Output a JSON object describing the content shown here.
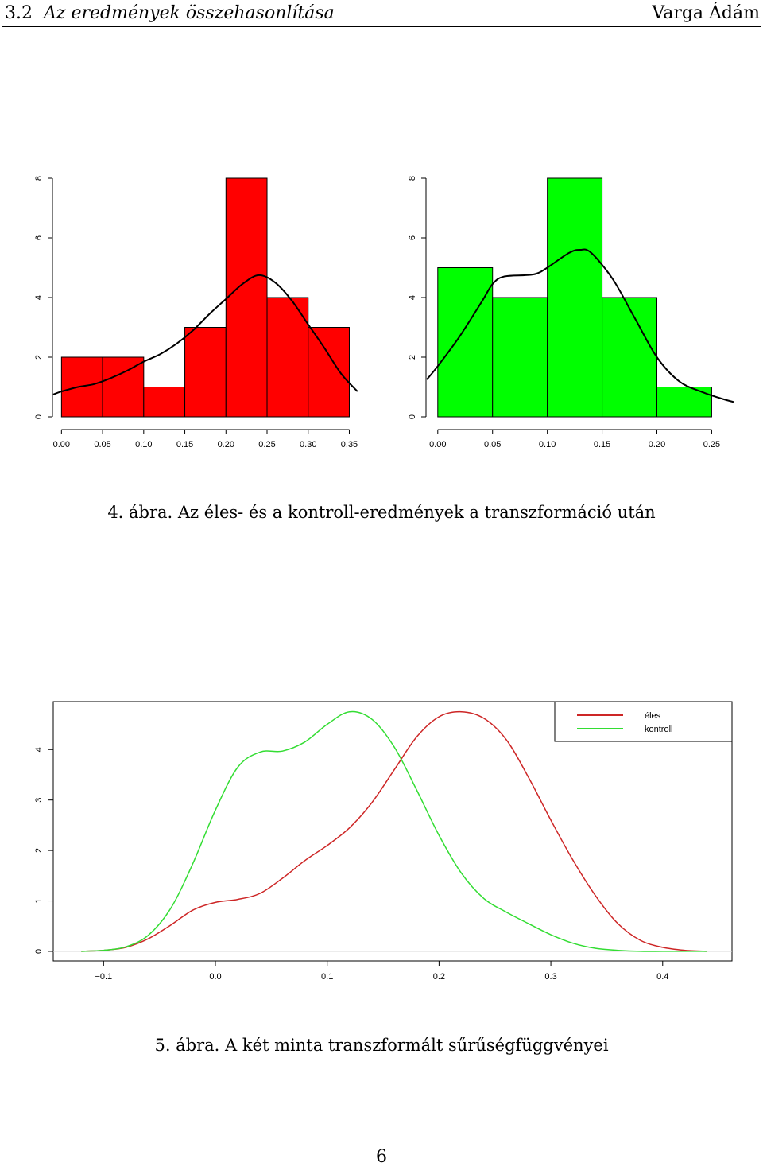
{
  "header": {
    "section_number": "3.2",
    "section_title": "Az eredmények összehasonlítása",
    "author": "Varga Ádám"
  },
  "figure4": {
    "caption": "4. ábra. Az éles- és a kontroll-eredmények a transzformáció után"
  },
  "figure5": {
    "caption": "5. ábra. A két minta transzformált sűrűségfüggvényei"
  },
  "page_number": "6",
  "chart_data": [
    {
      "type": "bar",
      "subtype": "histogram-with-density",
      "bar_color": "#ff0000",
      "bins": [
        [
          0.0,
          0.05
        ],
        [
          0.05,
          0.1
        ],
        [
          0.1,
          0.15
        ],
        [
          0.15,
          0.2
        ],
        [
          0.2,
          0.25
        ],
        [
          0.25,
          0.3
        ],
        [
          0.3,
          0.35
        ]
      ],
      "values": [
        2,
        2,
        1,
        3,
        8,
        4,
        3
      ],
      "xticks": [
        "0.00",
        "0.05",
        "0.10",
        "0.15",
        "0.20",
        "0.25",
        "0.30",
        "0.35"
      ],
      "xtick_values": [
        0.0,
        0.05,
        0.1,
        0.15,
        0.2,
        0.25,
        0.3,
        0.35
      ],
      "yticks": [
        "0",
        "2",
        "4",
        "6",
        "8"
      ],
      "ylim": [
        0,
        8
      ],
      "xlim": [
        -0.01,
        0.365
      ],
      "density_curve": {
        "x": [
          -0.01,
          0.0,
          0.02,
          0.04,
          0.06,
          0.08,
          0.1,
          0.12,
          0.14,
          0.16,
          0.18,
          0.2,
          0.22,
          0.24,
          0.26,
          0.28,
          0.3,
          0.32,
          0.34,
          0.36
        ],
        "y": [
          0.75,
          0.85,
          1.0,
          1.1,
          1.3,
          1.55,
          1.85,
          2.1,
          2.45,
          2.9,
          3.45,
          3.95,
          4.45,
          4.75,
          4.5,
          3.9,
          3.1,
          2.3,
          1.45,
          0.85
        ]
      }
    },
    {
      "type": "bar",
      "subtype": "histogram-with-density",
      "bar_color": "#00ff00",
      "bins": [
        [
          0.0,
          0.05
        ],
        [
          0.05,
          0.1
        ],
        [
          0.1,
          0.15
        ],
        [
          0.15,
          0.2
        ],
        [
          0.2,
          0.25
        ]
      ],
      "values": [
        5,
        4,
        8,
        4,
        1
      ],
      "xticks": [
        "0.00",
        "0.05",
        "0.10",
        "0.15",
        "0.20",
        "0.25"
      ],
      "xtick_values": [
        0.0,
        0.05,
        0.1,
        0.15,
        0.2,
        0.25
      ],
      "yticks": [
        "0",
        "2",
        "4",
        "6",
        "8"
      ],
      "ylim": [
        0,
        8
      ],
      "xlim": [
        -0.01,
        0.27
      ],
      "density_curve": {
        "x": [
          -0.01,
          0.0,
          0.02,
          0.04,
          0.05,
          0.06,
          0.08,
          0.09,
          0.1,
          0.12,
          0.13,
          0.14,
          0.16,
          0.18,
          0.2,
          0.22,
          0.24,
          0.26,
          0.27
        ],
        "y": [
          1.25,
          1.7,
          2.7,
          3.85,
          4.45,
          4.7,
          4.75,
          4.8,
          5.0,
          5.5,
          5.6,
          5.5,
          4.6,
          3.3,
          2.0,
          1.2,
          0.85,
          0.6,
          0.5
        ]
      }
    },
    {
      "type": "line",
      "x_ticks": [
        "-0.1",
        "0.0",
        "0.1",
        "0.2",
        "0.3",
        "0.4"
      ],
      "x_tick_values": [
        -0.1,
        0.0,
        0.1,
        0.2,
        0.3,
        0.4
      ],
      "y_ticks": [
        "0",
        "1",
        "2",
        "3",
        "4"
      ],
      "y_tick_values": [
        0,
        1,
        2,
        3,
        4
      ],
      "xlim": [
        -0.145,
        0.462
      ],
      "ylim": [
        -0.19,
        4.95
      ],
      "legend_placement": "top-right",
      "series": [
        {
          "name": "éles",
          "color": "#cd2626",
          "x": [
            -0.12,
            -0.1,
            -0.08,
            -0.06,
            -0.04,
            -0.02,
            0.0,
            0.02,
            0.04,
            0.06,
            0.08,
            0.1,
            0.12,
            0.14,
            0.16,
            0.18,
            0.2,
            0.22,
            0.24,
            0.26,
            0.28,
            0.3,
            0.32,
            0.34,
            0.36,
            0.38,
            0.4,
            0.42,
            0.44
          ],
          "y": [
            0.0,
            0.02,
            0.08,
            0.25,
            0.52,
            0.82,
            0.97,
            1.03,
            1.15,
            1.45,
            1.8,
            2.1,
            2.45,
            2.95,
            3.6,
            4.25,
            4.65,
            4.75,
            4.62,
            4.2,
            3.45,
            2.6,
            1.8,
            1.1,
            0.55,
            0.22,
            0.08,
            0.02,
            0.0
          ]
        },
        {
          "name": "kontroll",
          "color": "#33dd33",
          "x": [
            -0.12,
            -0.1,
            -0.08,
            -0.06,
            -0.04,
            -0.02,
            0.0,
            0.02,
            0.04,
            0.06,
            0.08,
            0.1,
            0.12,
            0.14,
            0.16,
            0.18,
            0.2,
            0.22,
            0.24,
            0.26,
            0.28,
            0.3,
            0.32,
            0.34,
            0.36,
            0.38,
            0.4,
            0.42,
            0.44
          ],
          "y": [
            0.0,
            0.02,
            0.09,
            0.32,
            0.85,
            1.75,
            2.8,
            3.65,
            3.95,
            3.97,
            4.15,
            4.5,
            4.75,
            4.6,
            4.05,
            3.2,
            2.3,
            1.55,
            1.05,
            0.78,
            0.55,
            0.33,
            0.16,
            0.06,
            0.02,
            0.0,
            0.0,
            0.0,
            0.0
          ]
        }
      ]
    }
  ]
}
